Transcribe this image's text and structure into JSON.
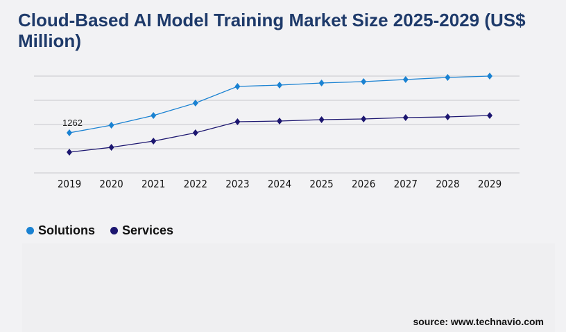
{
  "title": "Cloud-Based AI Model Training Market Size 2025-2029 (US$ Million)",
  "source": "source: www.technavio.com",
  "chart_data": {
    "type": "line",
    "title": "Cloud-Based AI Model Training Market Size 2025-2029 (US$ Million)",
    "categories": [
      "2019",
      "2020",
      "2021",
      "2022",
      "2023",
      "2024",
      "2025",
      "2026",
      "2027",
      "2028",
      "2029"
    ],
    "series": [
      {
        "name": "Solutions",
        "color": "#1a82d2",
        "values": [
          1262,
          1501,
          1806,
          2198,
          2720,
          2763,
          2829,
          2872,
          2938,
          3003,
          3046
        ]
      },
      {
        "name": "Services",
        "color": "#1c1670",
        "values": [
          653,
          805,
          1001,
          1262,
          1610,
          1632,
          1676,
          1697,
          1741,
          1762,
          1806
        ]
      }
    ],
    "data_labels": [
      {
        "series": "Solutions",
        "category": "2019",
        "text": "1262"
      }
    ],
    "ylim": [
      0,
      3046
    ],
    "grid": true,
    "y_tick_labels_shown": false,
    "legend_position": "bottom-left"
  }
}
